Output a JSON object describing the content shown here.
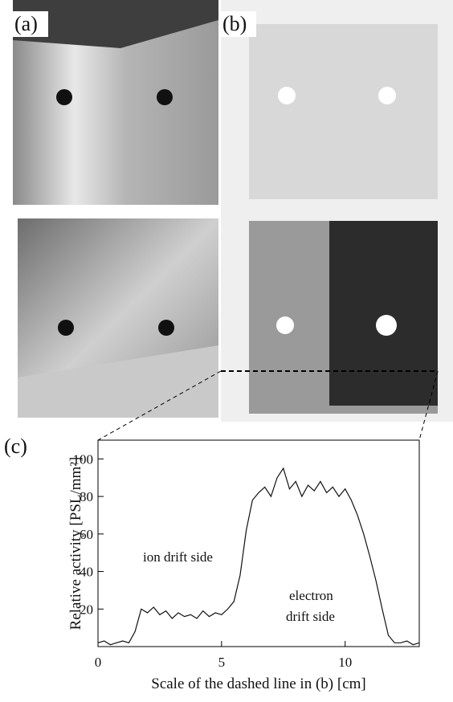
{
  "figure_labels": [
    "(a)",
    "(b)",
    "(c)"
  ],
  "chart_data": {
    "type": "line",
    "xlabel": "Scale of the dashed line in (b) [cm]",
    "ylabel": "Relative activity [PSL/mm²]",
    "annotations": [
      "ion drift side",
      "electron",
      "drift side"
    ],
    "xlim": [
      0,
      13
    ],
    "ylim": [
      0,
      110
    ],
    "xticks": [
      0,
      5,
      10
    ],
    "yticks": [
      20,
      40,
      60,
      80,
      100
    ],
    "color": "#111111",
    "x": [
      0,
      0.25,
      0.5,
      0.75,
      1,
      1.25,
      1.5,
      1.75,
      2,
      2.25,
      2.5,
      2.75,
      3,
      3.25,
      3.5,
      3.75,
      4,
      4.25,
      4.5,
      4.75,
      5,
      5.25,
      5.5,
      5.75,
      6,
      6.25,
      6.5,
      6.75,
      7,
      7.25,
      7.5,
      7.75,
      8,
      8.25,
      8.5,
      8.75,
      9,
      9.25,
      9.5,
      9.75,
      10,
      10.25,
      10.5,
      10.75,
      11,
      11.25,
      11.5,
      11.75,
      12,
      12.25,
      12.5,
      12.75,
      13
    ],
    "values": [
      2,
      3,
      1,
      2,
      3,
      2,
      8,
      20,
      18,
      21,
      17,
      19,
      15,
      18,
      16,
      17,
      15,
      19,
      16,
      18,
      17,
      20,
      24,
      38,
      62,
      78,
      82,
      85,
      80,
      90,
      95,
      84,
      88,
      80,
      86,
      83,
      88,
      82,
      85,
      80,
      84,
      78,
      70,
      60,
      48,
      35,
      20,
      6,
      2,
      2,
      3,
      1,
      2
    ]
  }
}
